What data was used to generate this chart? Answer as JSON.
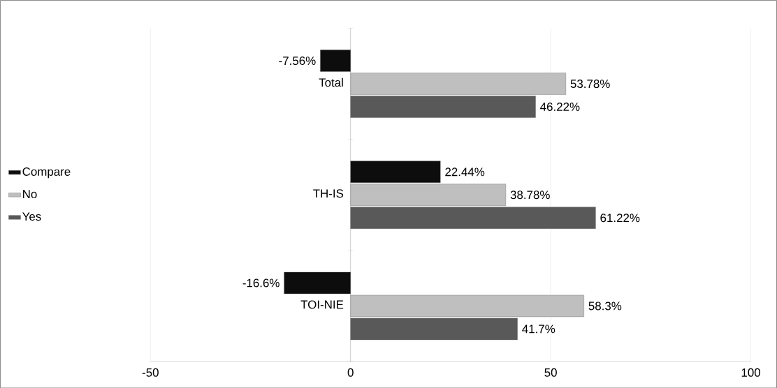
{
  "chart_data": {
    "type": "bar",
    "orientation": "horizontal",
    "categories": [
      "Total",
      "TH-IS",
      "TOI-NIE"
    ],
    "series": [
      {
        "name": "Yes",
        "color": "#595959",
        "values": [
          46.22,
          61.22,
          41.7
        ],
        "value_labels": [
          "46.22%",
          "61.22%",
          "41.7%"
        ]
      },
      {
        "name": "No",
        "color": "#bfbfbf",
        "values": [
          53.78,
          38.78,
          58.3
        ],
        "value_labels": [
          "53.78%",
          "38.78%",
          "58.3%"
        ]
      },
      {
        "name": "Compare",
        "color": "#0d0d0d",
        "values": [
          -7.56,
          22.44,
          -16.6
        ],
        "value_labels": [
          "-7.56%",
          "22.44%",
          "-16.6%"
        ]
      }
    ],
    "xlim": [
      -50,
      100
    ],
    "xticks": [
      -50,
      0,
      50,
      100
    ],
    "grid": "x",
    "legend": "left"
  }
}
